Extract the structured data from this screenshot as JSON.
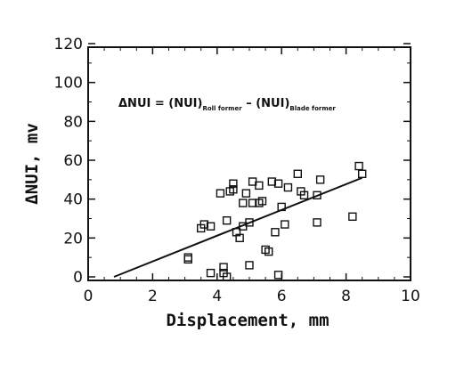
{
  "chart_data": {
    "type": "scatter",
    "xlabel": "Displacement, mm",
    "ylabel": "ΔNUI, mv",
    "xlim": [
      0,
      10
    ],
    "ylim": [
      0,
      120
    ],
    "x_ticks": [
      "0",
      "2",
      "4",
      "6",
      "8",
      "10"
    ],
    "y_ticks": [
      "0",
      "20",
      "40",
      "60",
      "80",
      "100",
      "120"
    ],
    "annotation": {
      "prefix": "ΔNUI = (NUI)",
      "sub1": "Roll former",
      "middle": " – (NUI)",
      "sub2": "Blade former"
    },
    "series": [
      {
        "marker": "open-square",
        "points": [
          [
            3.1,
            10
          ],
          [
            3.1,
            9
          ],
          [
            3.5,
            25
          ],
          [
            3.6,
            27
          ],
          [
            3.8,
            26
          ],
          [
            3.8,
            2
          ],
          [
            4.1,
            43
          ],
          [
            4.2,
            5
          ],
          [
            4.2,
            2
          ],
          [
            4.3,
            0
          ],
          [
            4.3,
            29
          ],
          [
            4.4,
            44
          ],
          [
            4.5,
            48
          ],
          [
            4.5,
            45
          ],
          [
            4.6,
            23
          ],
          [
            4.7,
            20
          ],
          [
            4.8,
            38
          ],
          [
            4.8,
            26
          ],
          [
            4.9,
            43
          ],
          [
            5.0,
            6
          ],
          [
            5.0,
            28
          ],
          [
            5.1,
            38
          ],
          [
            5.1,
            49
          ],
          [
            5.3,
            47
          ],
          [
            5.3,
            38
          ],
          [
            5.4,
            39
          ],
          [
            5.5,
            14
          ],
          [
            5.6,
            13
          ],
          [
            5.7,
            49
          ],
          [
            5.8,
            23
          ],
          [
            5.9,
            48
          ],
          [
            5.9,
            1
          ],
          [
            6.0,
            36
          ],
          [
            6.1,
            27
          ],
          [
            6.2,
            46
          ],
          [
            6.5,
            53
          ],
          [
            6.6,
            44
          ],
          [
            6.7,
            42
          ],
          [
            7.1,
            28
          ],
          [
            7.1,
            42
          ],
          [
            7.2,
            50
          ],
          [
            8.2,
            31
          ],
          [
            8.4,
            57
          ],
          [
            8.5,
            53
          ]
        ]
      }
    ],
    "fit_line": {
      "x": [
        0.8,
        8.5
      ],
      "y": [
        0,
        51
      ]
    },
    "grid": false,
    "legend": "none"
  }
}
